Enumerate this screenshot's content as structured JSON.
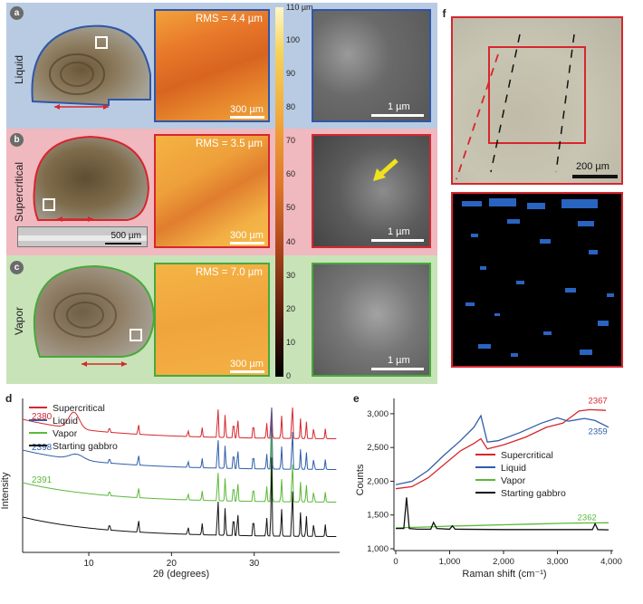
{
  "panels": {
    "a": {
      "letter": "a",
      "condition": "Liquid",
      "rms": "RMS = 4.4 µm",
      "afm_scale": "300 µm",
      "sem_scale": "1 µm",
      "bg": "#b8cbe3",
      "accent": "#2f57a7"
    },
    "b": {
      "letter": "b",
      "condition": "Supercritical",
      "rms": "RMS = 3.5 µm",
      "afm_scale": "300 µm",
      "sem_scale": "1 µm",
      "inset_scale": "500 µm",
      "bg": "#f0b8bf",
      "accent": "#d7262d"
    },
    "c": {
      "letter": "c",
      "condition": "Vapor",
      "rms": "RMS = 7.0 µm",
      "afm_scale": "300 µm",
      "sem_scale": "1 µm",
      "bg": "#c8e3b8",
      "accent": "#48a93a"
    }
  },
  "colorbar": {
    "top_label": "110 µm",
    "ticks": [
      "100",
      "90",
      "80",
      "70",
      "60",
      "50",
      "40",
      "30",
      "20",
      "10",
      "0"
    ]
  },
  "panel_f": {
    "letter": "f",
    "scale": "200 µm"
  },
  "chart_data": [
    {
      "type": "line",
      "panel": "d",
      "xlabel": "2θ (degrees)",
      "ylabel": "Intensity",
      "x_ticks": [
        "10",
        "20",
        "30"
      ],
      "xlim": [
        2,
        40
      ],
      "series": [
        {
          "name": "Supercritical",
          "color": "#d7262d",
          "label": "2380",
          "offset": 3.0
        },
        {
          "name": "Liquid",
          "color": "#2f5ea8",
          "label": "2398",
          "offset": 2.15
        },
        {
          "name": "Vapor",
          "color": "#5cb83a",
          "label": "2391",
          "offset": 1.25
        },
        {
          "name": "Starting gabbro",
          "color": "#111111",
          "offset": 0.3
        }
      ]
    },
    {
      "type": "line",
      "panel": "e",
      "xlabel": "Raman shift (cm⁻¹)",
      "ylabel": "Counts",
      "x_ticks": [
        "0",
        "1,000",
        "2,000",
        "3,000",
        "4,000"
      ],
      "y_ticks": [
        "1,000",
        "1,500",
        "2,000",
        "2,500",
        "3,000"
      ],
      "xlim": [
        0,
        4000
      ],
      "ylim": [
        1000,
        3200
      ],
      "annotations": [
        "2367",
        "2359",
        "2362"
      ],
      "series": [
        {
          "name": "Supercritical",
          "color": "#d7262d",
          "points": [
            [
              0,
              1890
            ],
            [
              300,
              1920
            ],
            [
              600,
              2050
            ],
            [
              900,
              2250
            ],
            [
              1200,
              2450
            ],
            [
              1450,
              2560
            ],
            [
              1580,
              2630
            ],
            [
              1700,
              2480
            ],
            [
              2000,
              2540
            ],
            [
              2400,
              2650
            ],
            [
              2800,
              2800
            ],
            [
              3100,
              2860
            ],
            [
              3250,
              2950
            ],
            [
              3400,
              3040
            ],
            [
              3600,
              3060
            ],
            [
              3900,
              3050
            ]
          ]
        },
        {
          "name": "Liquid",
          "color": "#2f5ea8",
          "points": [
            [
              0,
              1950
            ],
            [
              300,
              2000
            ],
            [
              600,
              2160
            ],
            [
              900,
              2390
            ],
            [
              1200,
              2600
            ],
            [
              1450,
              2800
            ],
            [
              1580,
              2970
            ],
            [
              1700,
              2580
            ],
            [
              1900,
              2600
            ],
            [
              2300,
              2720
            ],
            [
              2700,
              2860
            ],
            [
              3000,
              2940
            ],
            [
              3200,
              2890
            ],
            [
              3500,
              2930
            ],
            [
              3700,
              2900
            ],
            [
              3950,
              2800
            ]
          ]
        },
        {
          "name": "Vapor",
          "color": "#5cb83a",
          "points": [
            [
              0,
              1310
            ],
            [
              500,
              1320
            ],
            [
              1000,
              1335
            ],
            [
              1500,
              1345
            ],
            [
              2000,
              1355
            ],
            [
              2500,
              1365
            ],
            [
              3000,
              1375
            ],
            [
              3500,
              1382
            ],
            [
              3950,
              1385
            ]
          ]
        },
        {
          "name": "Starting gabbro",
          "color": "#111111",
          "points": [
            [
              0,
              1300
            ],
            [
              150,
              1300
            ],
            [
              200,
              1760
            ],
            [
              250,
              1300
            ],
            [
              400,
              1290
            ],
            [
              650,
              1290
            ],
            [
              700,
              1390
            ],
            [
              760,
              1300
            ],
            [
              1000,
              1290
            ],
            [
              1050,
              1340
            ],
            [
              1100,
              1290
            ],
            [
              2000,
              1285
            ],
            [
              3000,
              1285
            ],
            [
              3650,
              1285
            ],
            [
              3700,
              1370
            ],
            [
              3750,
              1285
            ],
            [
              3950,
              1280
            ]
          ]
        }
      ]
    }
  ]
}
